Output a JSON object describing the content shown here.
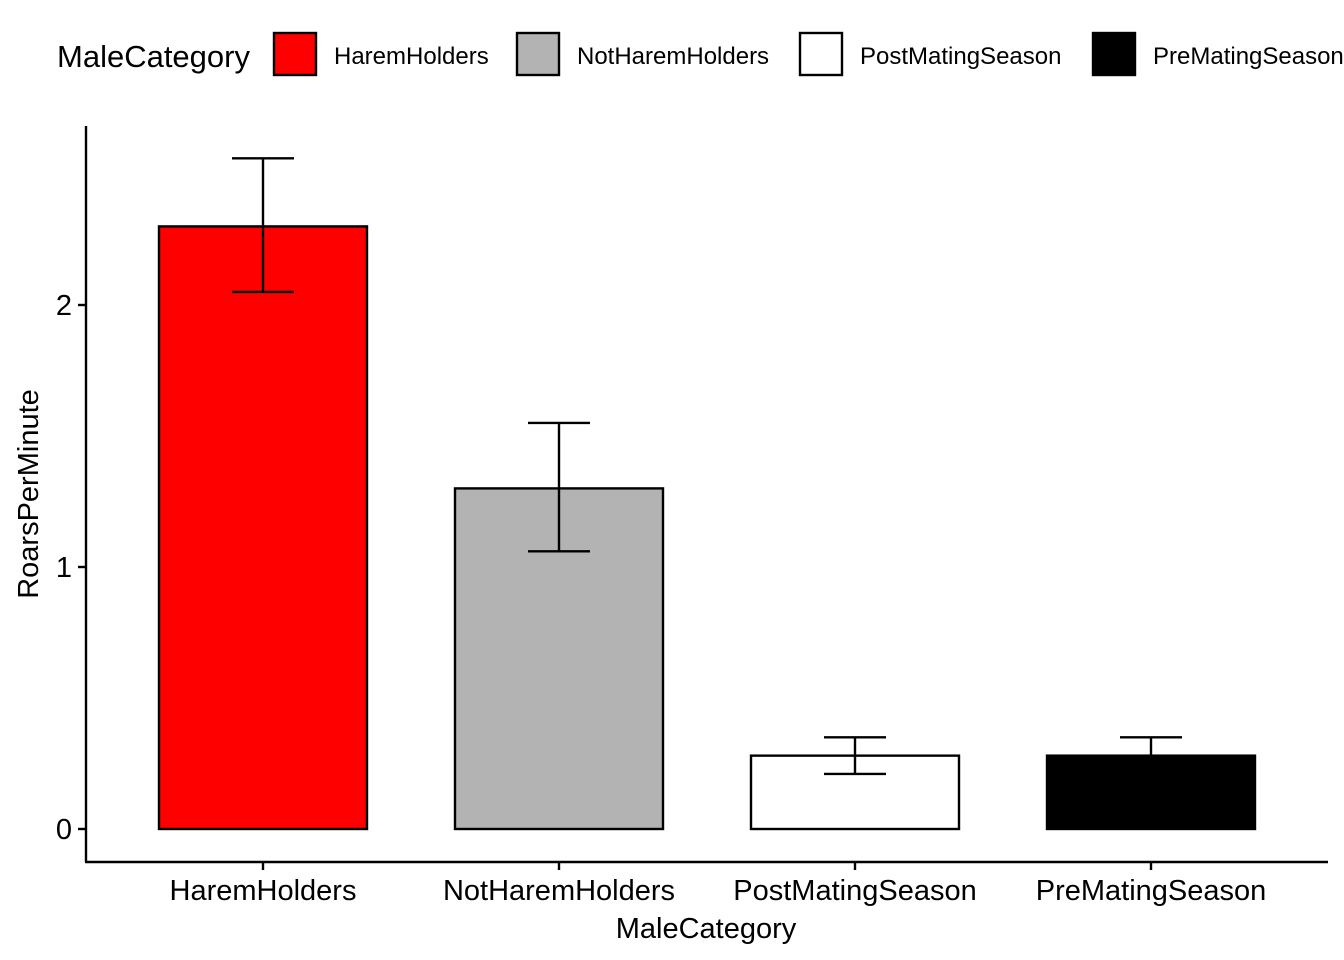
{
  "chart_data": {
    "type": "bar",
    "title": "",
    "xlabel": "MaleCategory",
    "ylabel": "RoarsPerMinute",
    "categories": [
      "HaremHolders",
      "NotHaremHolders",
      "PostMatingSeason",
      "PreMatingSeason"
    ],
    "values": [
      2.3,
      1.3,
      0.28,
      0.28
    ],
    "error_bars": [
      {
        "lower": 2.05,
        "upper": 2.56
      },
      {
        "lower": 1.06,
        "upper": 1.55
      },
      {
        "lower": 0.21,
        "upper": 0.35
      },
      {
        "lower": 0.28,
        "upper": 0.35
      }
    ],
    "colors": [
      "#FF0000",
      "#B3B3B3",
      "#FFFFFF",
      "#000000"
    ],
    "yticks": [
      0,
      1,
      2
    ],
    "ytick_labels": [
      "0",
      "1",
      "2"
    ],
    "ylim": [
      -0.125,
      2.66
    ],
    "grid": false,
    "legend": {
      "title": "MaleCategory",
      "position": "top",
      "entries": [
        "HaremHolders",
        "NotHaremHolders",
        "PostMatingSeason",
        "PreMatingSeason"
      ]
    }
  }
}
